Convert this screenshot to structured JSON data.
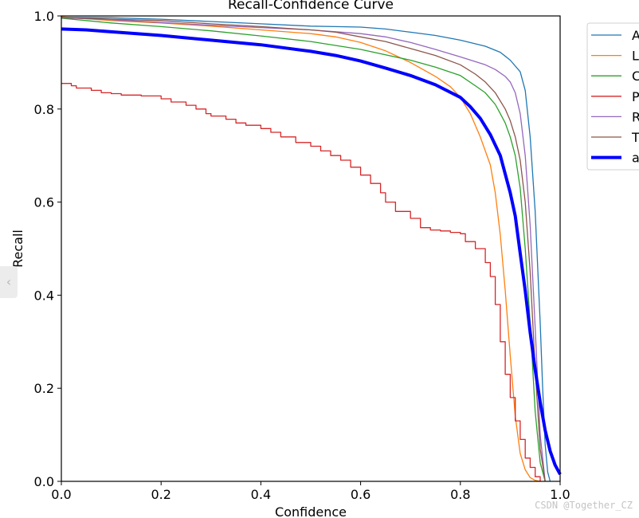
{
  "chart_data": {
    "type": "line",
    "title": "Recall-Confidence Curve",
    "xlabel": "Confidence",
    "ylabel": "Recall",
    "xlim": [
      0,
      1
    ],
    "ylim": [
      0,
      1
    ],
    "xticks": [
      "0.0",
      "0.2",
      "0.4",
      "0.6",
      "0.8",
      "1.0"
    ],
    "yticks": [
      "0.0",
      "0.2",
      "0.4",
      "0.6",
      "0.8",
      "1.0"
    ],
    "grid": false,
    "legend_position": "right-outside-top",
    "series": [
      {
        "name": "A",
        "color": "#1f77b4",
        "width": 1.3,
        "step": false,
        "x": [
          0,
          0.1,
          0.2,
          0.3,
          0.4,
          0.5,
          0.55,
          0.6,
          0.65,
          0.7,
          0.75,
          0.8,
          0.85,
          0.88,
          0.9,
          0.92,
          0.93,
          0.94,
          0.95,
          0.96,
          0.965,
          0.97,
          0.975,
          0.98
        ],
        "y": [
          0.997,
          0.996,
          0.993,
          0.988,
          0.983,
          0.978,
          0.977,
          0.976,
          0.972,
          0.965,
          0.958,
          0.948,
          0.935,
          0.922,
          0.905,
          0.88,
          0.84,
          0.74,
          0.58,
          0.34,
          0.2,
          0.08,
          0.02,
          0.0
        ]
      },
      {
        "name": "L",
        "color": "#ff7f0e",
        "width": 1.3,
        "step": false,
        "x": [
          0,
          0.1,
          0.2,
          0.3,
          0.4,
          0.5,
          0.55,
          0.6,
          0.65,
          0.7,
          0.75,
          0.78,
          0.8,
          0.82,
          0.84,
          0.86,
          0.87,
          0.88,
          0.89,
          0.9,
          0.91,
          0.92,
          0.93,
          0.94,
          0.95,
          0.96
        ],
        "y": [
          0.998,
          0.99,
          0.985,
          0.978,
          0.97,
          0.962,
          0.955,
          0.943,
          0.925,
          0.9,
          0.87,
          0.848,
          0.825,
          0.79,
          0.74,
          0.68,
          0.62,
          0.53,
          0.41,
          0.27,
          0.14,
          0.06,
          0.025,
          0.008,
          0.002,
          0.0
        ]
      },
      {
        "name": "C",
        "color": "#2ca02c",
        "width": 1.3,
        "step": false,
        "x": [
          0,
          0.1,
          0.2,
          0.3,
          0.4,
          0.5,
          0.6,
          0.7,
          0.75,
          0.8,
          0.83,
          0.85,
          0.87,
          0.88,
          0.89,
          0.9,
          0.91,
          0.92,
          0.93,
          0.94,
          0.95,
          0.96,
          0.97
        ],
        "y": [
          0.995,
          0.985,
          0.977,
          0.968,
          0.957,
          0.945,
          0.928,
          0.905,
          0.89,
          0.872,
          0.85,
          0.835,
          0.81,
          0.79,
          0.77,
          0.74,
          0.7,
          0.63,
          0.5,
          0.34,
          0.15,
          0.04,
          0.0
        ]
      },
      {
        "name": "P",
        "color": "#d62728",
        "width": 1.3,
        "step": true,
        "x": [
          0,
          0.02,
          0.03,
          0.06,
          0.08,
          0.1,
          0.12,
          0.16,
          0.2,
          0.22,
          0.25,
          0.27,
          0.29,
          0.3,
          0.33,
          0.35,
          0.37,
          0.4,
          0.42,
          0.44,
          0.47,
          0.5,
          0.52,
          0.54,
          0.56,
          0.58,
          0.6,
          0.62,
          0.64,
          0.65,
          0.67,
          0.7,
          0.72,
          0.74,
          0.76,
          0.78,
          0.8,
          0.81,
          0.83,
          0.85,
          0.86,
          0.87,
          0.88,
          0.89,
          0.9,
          0.91,
          0.92,
          0.93,
          0.94,
          0.95,
          0.96
        ],
        "y": [
          0.855,
          0.85,
          0.845,
          0.84,
          0.835,
          0.833,
          0.83,
          0.828,
          0.822,
          0.815,
          0.808,
          0.8,
          0.79,
          0.785,
          0.778,
          0.77,
          0.765,
          0.758,
          0.75,
          0.74,
          0.728,
          0.72,
          0.71,
          0.7,
          0.69,
          0.675,
          0.658,
          0.64,
          0.62,
          0.6,
          0.58,
          0.565,
          0.545,
          0.54,
          0.538,
          0.535,
          0.532,
          0.515,
          0.5,
          0.47,
          0.44,
          0.38,
          0.3,
          0.23,
          0.18,
          0.13,
          0.09,
          0.05,
          0.03,
          0.01,
          0.0
        ]
      },
      {
        "name": "R",
        "color": "#9467bd",
        "width": 1.3,
        "step": false,
        "x": [
          0,
          0.1,
          0.2,
          0.3,
          0.4,
          0.5,
          0.6,
          0.65,
          0.7,
          0.75,
          0.8,
          0.85,
          0.87,
          0.89,
          0.9,
          0.91,
          0.92,
          0.93,
          0.94,
          0.95,
          0.96,
          0.97
        ],
        "y": [
          0.996,
          0.992,
          0.986,
          0.98,
          0.975,
          0.97,
          0.962,
          0.955,
          0.943,
          0.928,
          0.912,
          0.895,
          0.885,
          0.87,
          0.858,
          0.835,
          0.79,
          0.7,
          0.55,
          0.33,
          0.1,
          0.0
        ]
      },
      {
        "name": "T",
        "color": "#8c564b",
        "width": 1.3,
        "step": false,
        "x": [
          0,
          0.1,
          0.2,
          0.3,
          0.4,
          0.5,
          0.55,
          0.6,
          0.65,
          0.7,
          0.75,
          0.8,
          0.83,
          0.85,
          0.87,
          0.89,
          0.9,
          0.91,
          0.92,
          0.93,
          0.94,
          0.95,
          0.96,
          0.97
        ],
        "y": [
          0.997,
          0.993,
          0.99,
          0.983,
          0.977,
          0.97,
          0.965,
          0.955,
          0.945,
          0.93,
          0.915,
          0.895,
          0.875,
          0.858,
          0.835,
          0.8,
          0.775,
          0.74,
          0.69,
          0.6,
          0.45,
          0.24,
          0.07,
          0.0
        ]
      },
      {
        "name": "a",
        "color": "#0000ff",
        "width": 4,
        "step": false,
        "x": [
          0,
          0.05,
          0.1,
          0.2,
          0.3,
          0.4,
          0.45,
          0.5,
          0.55,
          0.6,
          0.65,
          0.7,
          0.75,
          0.8,
          0.82,
          0.84,
          0.86,
          0.88,
          0.9,
          0.91,
          0.92,
          0.93,
          0.94,
          0.95,
          0.96,
          0.97,
          0.98,
          0.99,
          1.0
        ],
        "y": [
          0.972,
          0.97,
          0.966,
          0.958,
          0.948,
          0.938,
          0.931,
          0.924,
          0.915,
          0.903,
          0.888,
          0.872,
          0.852,
          0.825,
          0.805,
          0.78,
          0.745,
          0.7,
          0.62,
          0.57,
          0.49,
          0.41,
          0.32,
          0.24,
          0.17,
          0.11,
          0.065,
          0.035,
          0.015
        ]
      }
    ]
  },
  "ui": {
    "prev_glyph": "‹",
    "watermark": "CSDN @Together_CZ"
  }
}
